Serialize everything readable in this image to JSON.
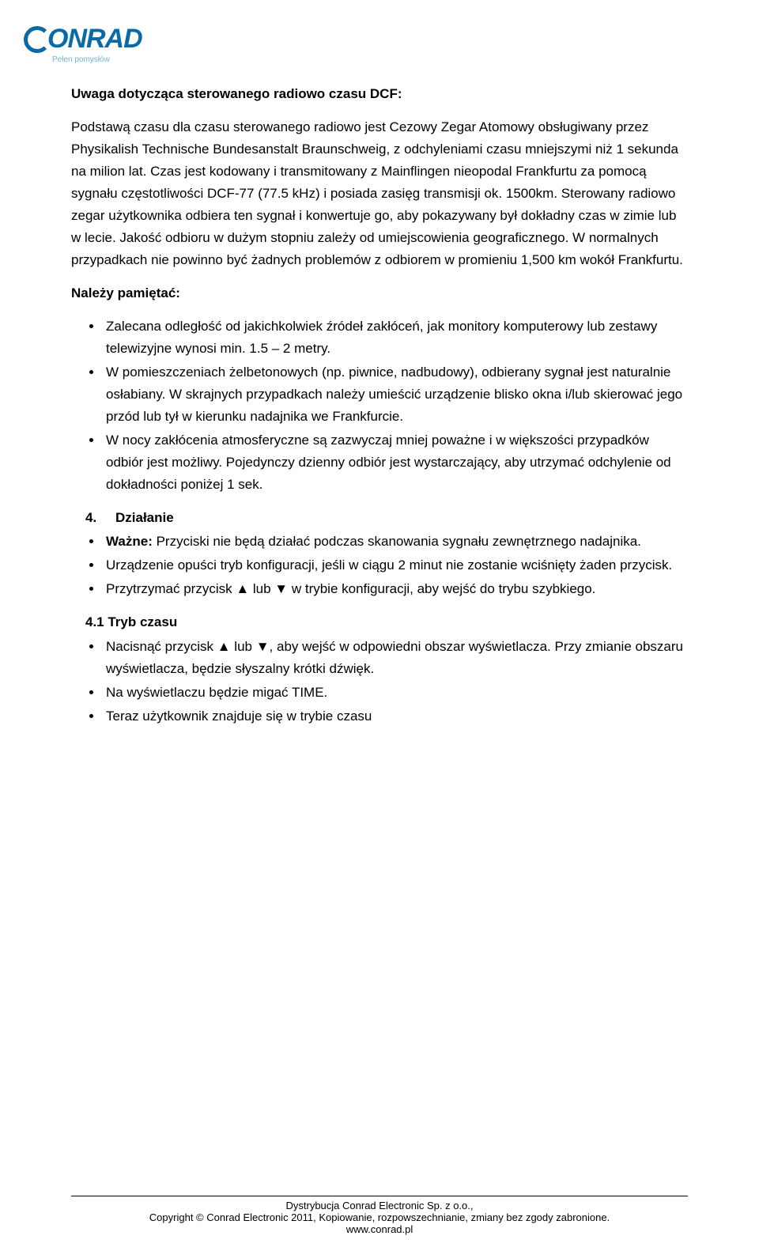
{
  "logo": {
    "brand": "ONRAD",
    "tagline": "Pełen pomysłów"
  },
  "heading": "Uwaga dotycząca sterowanego radiowo czasu DCF:",
  "para1": "Podstawą czasu dla czasu sterowanego radiowo jest Cezowy Zegar Atomowy obsługiwany przez Physikalish Technische Bundesanstalt Braunschweig, z odchyleniami czasu mniejszymi niż 1 sekunda na milion lat. Czas jest kodowany i transmitowany z Mainflingen nieopodal Frankfurtu za pomocą sygnału częstotliwości DCF-77 (77.5 kHz) i posiada zasięg transmisji ok. 1500km. Sterowany radiowo zegar użytkownika odbiera ten sygnał i konwertuje go, aby pokazywany był dokładny czas w zimie lub w lecie. Jakość odbioru w dużym stopniu zależy od umiejscowienia geograficznego. W normalnych przypadkach nie powinno być żadnych problemów z odbiorem w promieniu 1,500 km wokół Frankfurtu.",
  "remember_title": "Należy pamiętać:",
  "remember": [
    "Zalecana odległość od jakichkolwiek źródeł zakłóceń, jak monitory komputerowy lub zestawy telewizyjne wynosi min. 1.5 – 2 metry.",
    "W pomieszczeniach żelbetonowych (np. piwnice, nadbudowy), odbierany sygnał jest naturalnie osłabiany. W skrajnych przypadkach należy umieścić urządzenie blisko okna i/lub skierować jego przód lub tył w kierunku nadajnika we Frankfurcie.",
    "W nocy zakłócenia atmosferyczne są zazwyczaj mniej poważne i w większości przypadków odbiór jest możliwy. Pojedynczy dzienny odbiór jest wystarczający, aby utrzymać odchylenie od dokładności poniżej 1 sek."
  ],
  "section4": {
    "num": "4.",
    "title": "Działanie"
  },
  "section4_bullets_prefix": "Ważne:",
  "section4_bullets": [
    " Przyciski nie będą działać podczas skanowania sygnału zewnętrznego nadajnika.",
    "Urządzenie opuści tryb konfiguracji, jeśli w ciągu 2 minut nie zostanie wciśnięty żaden przycisk.",
    "Przytrzymać przycisk ▲ lub ▼ w trybie konfiguracji, aby wejść do trybu szybkiego."
  ],
  "section41": "4.1 Tryb czasu",
  "section41_bullets": [
    "Nacisnąć  przycisk ▲ lub ▼, aby wejść w odpowiedni obszar wyświetlacza. Przy zmianie obszaru wyświetlacza, będzie słyszalny krótki dźwięk.",
    "Na wyświetlaczu będzie migać TIME.",
    "Teraz użytkownik znajduje się w trybie czasu"
  ],
  "footer": {
    "l1": "Dystrybucja Conrad Electronic Sp. z o.o.,",
    "l2": "Copyright © Conrad Electronic 2011, Kopiowanie, rozpowszechnianie, zmiany bez zgody zabronione.",
    "l3": "www.conrad.pl"
  },
  "colors": {
    "brand": "#0a6aa8",
    "subbrand": "#6fb7d9",
    "text": "#000000",
    "bg": "#ffffff"
  }
}
